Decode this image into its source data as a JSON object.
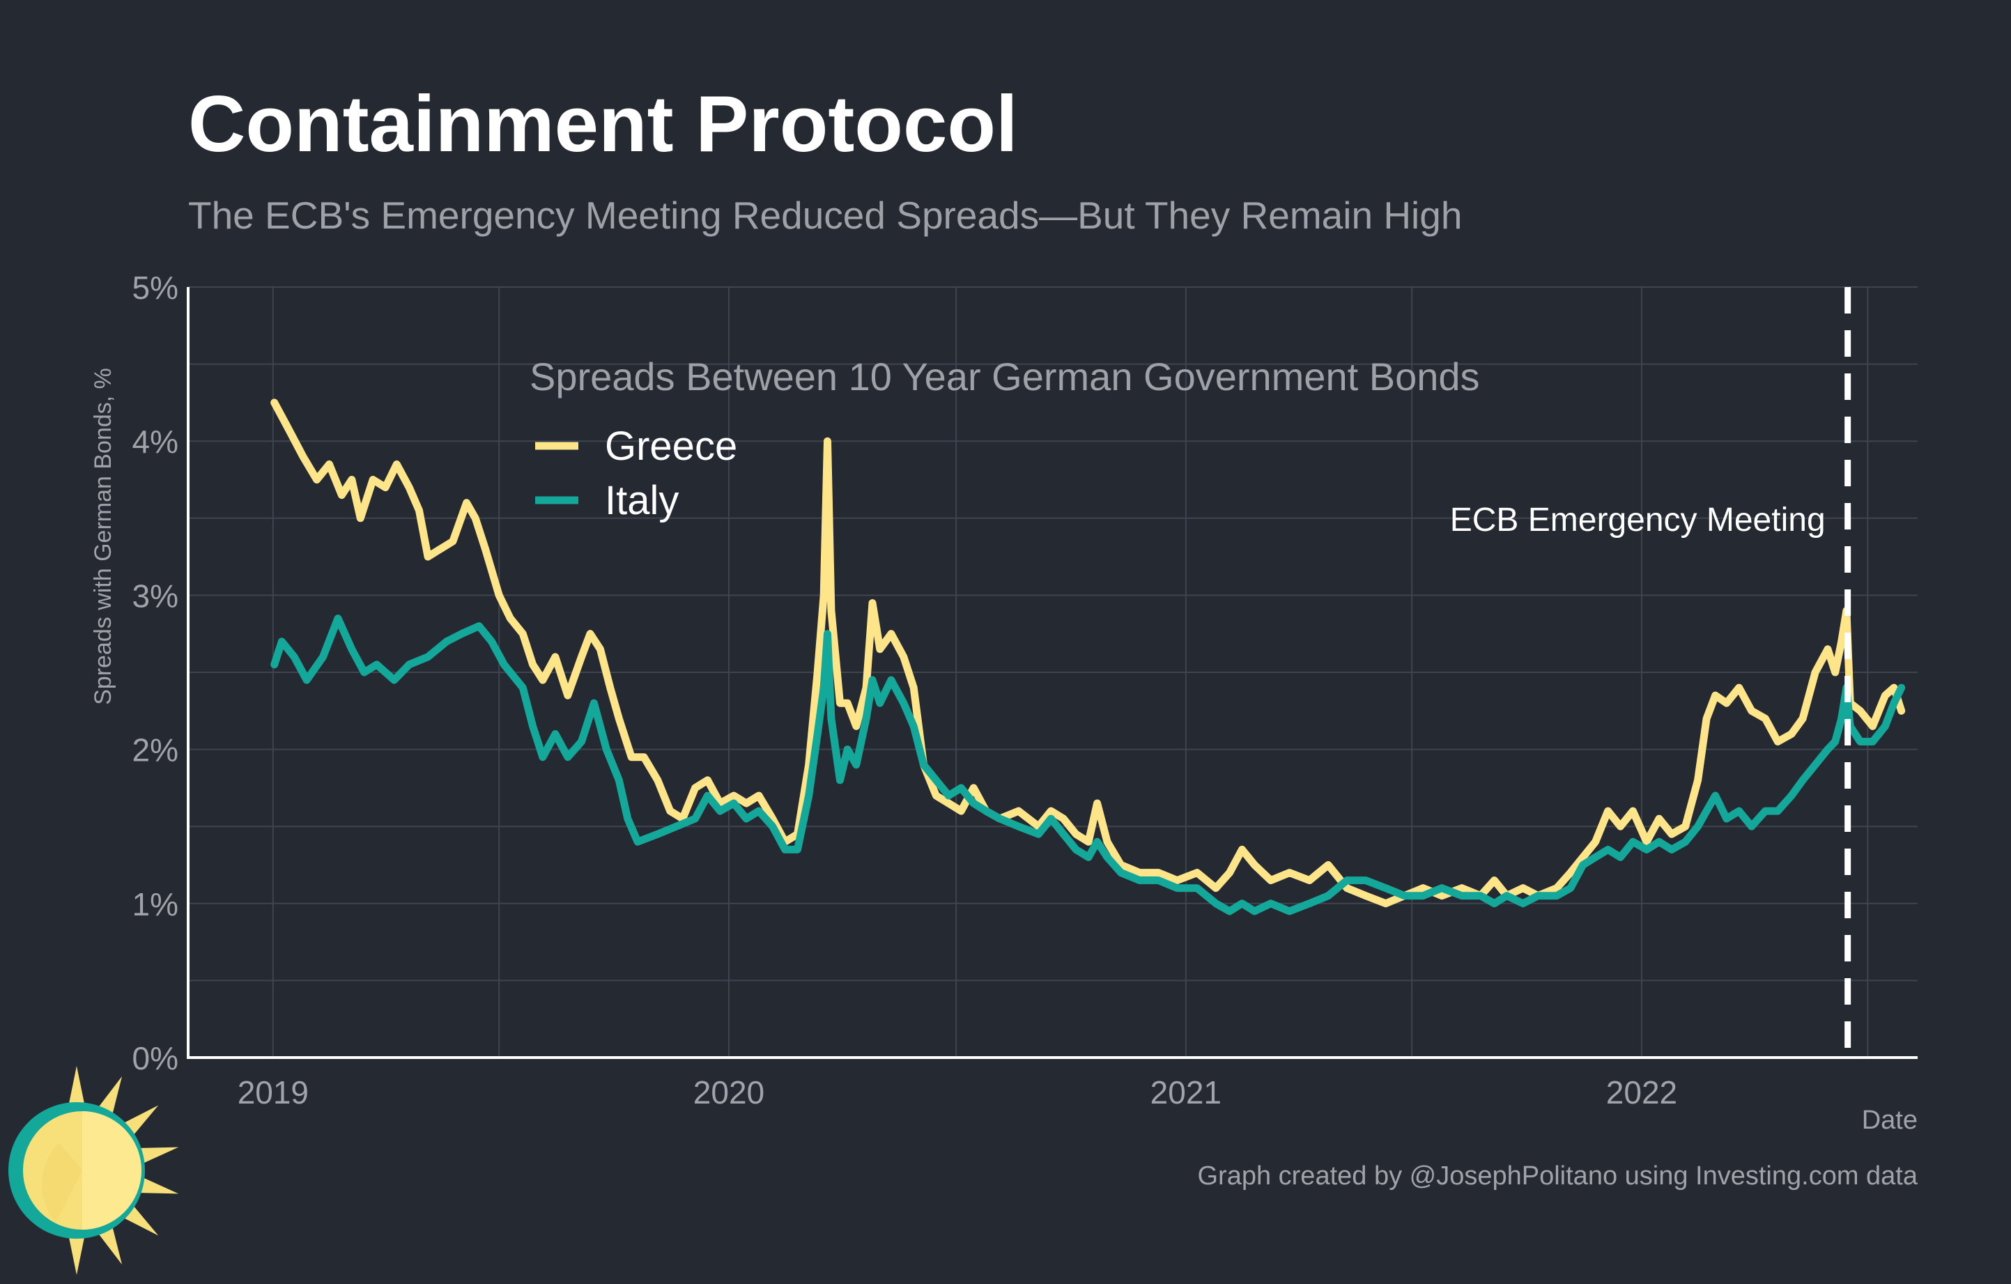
{
  "colors": {
    "background": "#252932",
    "grid": "#3f444e",
    "axis": "#ffffff",
    "greece": "#ffe58a",
    "italy": "#14a89a",
    "title": "#ffffff",
    "subtitle": "#9ea1a8",
    "tick_label": "#a0a3aa",
    "annotation": "#ffffff",
    "logo_sun": "#f7e07a",
    "logo_ring": "#14a89a"
  },
  "chart_data": {
    "type": "line",
    "title": "Containment Protocol",
    "subtitle": "The ECB's Emergency Meeting Reduced Spreads—But They Remain High",
    "ylabel": "Spreads with German Bonds, %",
    "xlabel": "Date",
    "ylim": [
      0,
      5
    ],
    "xlim": [
      "2018-10-25",
      "2022-08-10"
    ],
    "y_ticks": [
      0,
      1,
      2,
      3,
      4,
      5
    ],
    "y_tick_labels": [
      "0%",
      "1%",
      "2%",
      "3%",
      "4%",
      "5%"
    ],
    "x_ticks": [
      "2019-01-01",
      "2020-01-01",
      "2021-01-01",
      "2022-01-01"
    ],
    "x_tick_labels": [
      "2019",
      "2020",
      "2021",
      "2022"
    ],
    "grid": true,
    "legend": {
      "title": "Spreads Between 10 Year German Government Bonds",
      "placement": "top-left-inside",
      "entries": [
        "Greece",
        "Italy"
      ]
    },
    "annotations": [
      {
        "type": "vline",
        "x": "2022-06-15",
        "label": "ECB Emergency Meeting",
        "style": "dashed"
      }
    ],
    "series": [
      {
        "name": "Greece",
        "points": [
          [
            "2019-01-02",
            4.25
          ],
          [
            "2019-01-12",
            4.1
          ],
          [
            "2019-01-25",
            3.9
          ],
          [
            "2019-02-05",
            3.75
          ],
          [
            "2019-02-15",
            3.85
          ],
          [
            "2019-02-25",
            3.65
          ],
          [
            "2019-03-05",
            3.75
          ],
          [
            "2019-03-12",
            3.5
          ],
          [
            "2019-03-22",
            3.75
          ],
          [
            "2019-04-01",
            3.7
          ],
          [
            "2019-04-10",
            3.85
          ],
          [
            "2019-04-20",
            3.7
          ],
          [
            "2019-04-28",
            3.55
          ],
          [
            "2019-05-05",
            3.25
          ],
          [
            "2019-05-15",
            3.3
          ],
          [
            "2019-05-25",
            3.35
          ],
          [
            "2019-06-05",
            3.6
          ],
          [
            "2019-06-12",
            3.5
          ],
          [
            "2019-06-20",
            3.3
          ],
          [
            "2019-07-01",
            3.0
          ],
          [
            "2019-07-10",
            2.85
          ],
          [
            "2019-07-20",
            2.75
          ],
          [
            "2019-07-28",
            2.55
          ],
          [
            "2019-08-05",
            2.45
          ],
          [
            "2019-08-15",
            2.6
          ],
          [
            "2019-08-25",
            2.35
          ],
          [
            "2019-09-05",
            2.6
          ],
          [
            "2019-09-12",
            2.75
          ],
          [
            "2019-09-20",
            2.65
          ],
          [
            "2019-09-28",
            2.4
          ],
          [
            "2019-10-05",
            2.2
          ],
          [
            "2019-10-15",
            1.95
          ],
          [
            "2019-10-25",
            1.95
          ],
          [
            "2019-11-05",
            1.8
          ],
          [
            "2019-11-15",
            1.6
          ],
          [
            "2019-11-25",
            1.55
          ],
          [
            "2019-12-05",
            1.75
          ],
          [
            "2019-12-15",
            1.8
          ],
          [
            "2019-12-25",
            1.65
          ],
          [
            "2020-01-05",
            1.7
          ],
          [
            "2020-01-15",
            1.65
          ],
          [
            "2020-01-25",
            1.7
          ],
          [
            "2020-02-05",
            1.55
          ],
          [
            "2020-02-15",
            1.4
          ],
          [
            "2020-02-25",
            1.45
          ],
          [
            "2020-03-05",
            1.9
          ],
          [
            "2020-03-12",
            2.5
          ],
          [
            "2020-03-17",
            3.0
          ],
          [
            "2020-03-20",
            4.0
          ],
          [
            "2020-03-23",
            2.9
          ],
          [
            "2020-03-30",
            2.3
          ],
          [
            "2020-04-05",
            2.3
          ],
          [
            "2020-04-12",
            2.15
          ],
          [
            "2020-04-20",
            2.4
          ],
          [
            "2020-04-25",
            2.95
          ],
          [
            "2020-05-01",
            2.65
          ],
          [
            "2020-05-10",
            2.75
          ],
          [
            "2020-05-20",
            2.6
          ],
          [
            "2020-05-28",
            2.4
          ],
          [
            "2020-06-05",
            1.9
          ],
          [
            "2020-06-15",
            1.7
          ],
          [
            "2020-06-25",
            1.65
          ],
          [
            "2020-07-05",
            1.6
          ],
          [
            "2020-07-15",
            1.75
          ],
          [
            "2020-07-25",
            1.6
          ],
          [
            "2020-08-05",
            1.55
          ],
          [
            "2020-08-20",
            1.6
          ],
          [
            "2020-09-05",
            1.5
          ],
          [
            "2020-09-15",
            1.6
          ],
          [
            "2020-09-25",
            1.55
          ],
          [
            "2020-10-05",
            1.45
          ],
          [
            "2020-10-15",
            1.4
          ],
          [
            "2020-10-22",
            1.65
          ],
          [
            "2020-10-30",
            1.4
          ],
          [
            "2020-11-10",
            1.25
          ],
          [
            "2020-11-25",
            1.2
          ],
          [
            "2020-12-10",
            1.2
          ],
          [
            "2020-12-25",
            1.15
          ],
          [
            "2021-01-10",
            1.2
          ],
          [
            "2021-01-25",
            1.1
          ],
          [
            "2021-02-05",
            1.2
          ],
          [
            "2021-02-15",
            1.35
          ],
          [
            "2021-02-25",
            1.25
          ],
          [
            "2021-03-10",
            1.15
          ],
          [
            "2021-03-25",
            1.2
          ],
          [
            "2021-04-10",
            1.15
          ],
          [
            "2021-04-25",
            1.25
          ],
          [
            "2021-05-10",
            1.1
          ],
          [
            "2021-05-25",
            1.05
          ],
          [
            "2021-06-10",
            1.0
          ],
          [
            "2021-06-25",
            1.05
          ],
          [
            "2021-07-10",
            1.1
          ],
          [
            "2021-07-25",
            1.05
          ],
          [
            "2021-08-10",
            1.1
          ],
          [
            "2021-08-25",
            1.05
          ],
          [
            "2021-09-05",
            1.15
          ],
          [
            "2021-09-15",
            1.05
          ],
          [
            "2021-09-28",
            1.1
          ],
          [
            "2021-10-10",
            1.05
          ],
          [
            "2021-10-25",
            1.1
          ],
          [
            "2021-11-05",
            1.2
          ],
          [
            "2021-11-15",
            1.3
          ],
          [
            "2021-11-25",
            1.4
          ],
          [
            "2021-12-05",
            1.6
          ],
          [
            "2021-12-15",
            1.5
          ],
          [
            "2021-12-25",
            1.6
          ],
          [
            "2022-01-05",
            1.4
          ],
          [
            "2022-01-15",
            1.55
          ],
          [
            "2022-01-25",
            1.45
          ],
          [
            "2022-02-05",
            1.5
          ],
          [
            "2022-02-15",
            1.8
          ],
          [
            "2022-02-22",
            2.2
          ],
          [
            "2022-03-01",
            2.35
          ],
          [
            "2022-03-10",
            2.3
          ],
          [
            "2022-03-20",
            2.4
          ],
          [
            "2022-03-30",
            2.25
          ],
          [
            "2022-04-10",
            2.2
          ],
          [
            "2022-04-20",
            2.05
          ],
          [
            "2022-05-01",
            2.1
          ],
          [
            "2022-05-10",
            2.2
          ],
          [
            "2022-05-20",
            2.5
          ],
          [
            "2022-05-30",
            2.65
          ],
          [
            "2022-06-05",
            2.5
          ],
          [
            "2022-06-10",
            2.7
          ],
          [
            "2022-06-14",
            2.9
          ],
          [
            "2022-06-17",
            2.3
          ],
          [
            "2022-06-25",
            2.25
          ],
          [
            "2022-07-05",
            2.15
          ],
          [
            "2022-07-15",
            2.35
          ],
          [
            "2022-07-22",
            2.4
          ],
          [
            "2022-07-28",
            2.25
          ]
        ]
      },
      {
        "name": "Italy",
        "points": [
          [
            "2019-01-02",
            2.55
          ],
          [
            "2019-01-08",
            2.7
          ],
          [
            "2019-01-18",
            2.6
          ],
          [
            "2019-01-28",
            2.45
          ],
          [
            "2019-02-10",
            2.6
          ],
          [
            "2019-02-22",
            2.85
          ],
          [
            "2019-03-05",
            2.65
          ],
          [
            "2019-03-15",
            2.5
          ],
          [
            "2019-03-25",
            2.55
          ],
          [
            "2019-04-08",
            2.45
          ],
          [
            "2019-04-20",
            2.55
          ],
          [
            "2019-05-05",
            2.6
          ],
          [
            "2019-05-20",
            2.7
          ],
          [
            "2019-06-01",
            2.75
          ],
          [
            "2019-06-15",
            2.8
          ],
          [
            "2019-06-25",
            2.7
          ],
          [
            "2019-07-05",
            2.55
          ],
          [
            "2019-07-20",
            2.4
          ],
          [
            "2019-07-28",
            2.15
          ],
          [
            "2019-08-05",
            1.95
          ],
          [
            "2019-08-15",
            2.1
          ],
          [
            "2019-08-25",
            1.95
          ],
          [
            "2019-09-05",
            2.05
          ],
          [
            "2019-09-15",
            2.3
          ],
          [
            "2019-09-25",
            2.0
          ],
          [
            "2019-10-05",
            1.8
          ],
          [
            "2019-10-12",
            1.55
          ],
          [
            "2019-10-20",
            1.4
          ],
          [
            "2019-11-05",
            1.45
          ],
          [
            "2019-11-20",
            1.5
          ],
          [
            "2019-12-05",
            1.55
          ],
          [
            "2019-12-15",
            1.7
          ],
          [
            "2019-12-25",
            1.6
          ],
          [
            "2020-01-05",
            1.65
          ],
          [
            "2020-01-15",
            1.55
          ],
          [
            "2020-01-25",
            1.6
          ],
          [
            "2020-02-05",
            1.5
          ],
          [
            "2020-02-15",
            1.35
          ],
          [
            "2020-02-25",
            1.35
          ],
          [
            "2020-03-05",
            1.7
          ],
          [
            "2020-03-12",
            2.1
          ],
          [
            "2020-03-17",
            2.4
          ],
          [
            "2020-03-20",
            2.75
          ],
          [
            "2020-03-23",
            2.2
          ],
          [
            "2020-03-30",
            1.8
          ],
          [
            "2020-04-05",
            2.0
          ],
          [
            "2020-04-12",
            1.9
          ],
          [
            "2020-04-20",
            2.2
          ],
          [
            "2020-04-25",
            2.45
          ],
          [
            "2020-05-01",
            2.3
          ],
          [
            "2020-05-10",
            2.45
          ],
          [
            "2020-05-20",
            2.3
          ],
          [
            "2020-05-28",
            2.15
          ],
          [
            "2020-06-05",
            1.9
          ],
          [
            "2020-06-15",
            1.8
          ],
          [
            "2020-06-25",
            1.7
          ],
          [
            "2020-07-05",
            1.75
          ],
          [
            "2020-07-15",
            1.65
          ],
          [
            "2020-07-25",
            1.6
          ],
          [
            "2020-08-05",
            1.55
          ],
          [
            "2020-08-20",
            1.5
          ],
          [
            "2020-09-05",
            1.45
          ],
          [
            "2020-09-15",
            1.55
          ],
          [
            "2020-09-25",
            1.45
          ],
          [
            "2020-10-05",
            1.35
          ],
          [
            "2020-10-15",
            1.3
          ],
          [
            "2020-10-22",
            1.4
          ],
          [
            "2020-10-30",
            1.3
          ],
          [
            "2020-11-10",
            1.2
          ],
          [
            "2020-11-25",
            1.15
          ],
          [
            "2020-12-10",
            1.15
          ],
          [
            "2020-12-25",
            1.1
          ],
          [
            "2021-01-10",
            1.1
          ],
          [
            "2021-01-25",
            1.0
          ],
          [
            "2021-02-05",
            0.95
          ],
          [
            "2021-02-15",
            1.0
          ],
          [
            "2021-02-25",
            0.95
          ],
          [
            "2021-03-10",
            1.0
          ],
          [
            "2021-03-25",
            0.95
          ],
          [
            "2021-04-10",
            1.0
          ],
          [
            "2021-04-25",
            1.05
          ],
          [
            "2021-05-10",
            1.15
          ],
          [
            "2021-05-25",
            1.15
          ],
          [
            "2021-06-10",
            1.1
          ],
          [
            "2021-06-25",
            1.05
          ],
          [
            "2021-07-10",
            1.05
          ],
          [
            "2021-07-25",
            1.1
          ],
          [
            "2021-08-10",
            1.05
          ],
          [
            "2021-08-25",
            1.05
          ],
          [
            "2021-09-05",
            1.0
          ],
          [
            "2021-09-15",
            1.05
          ],
          [
            "2021-09-28",
            1.0
          ],
          [
            "2021-10-10",
            1.05
          ],
          [
            "2021-10-25",
            1.05
          ],
          [
            "2021-11-05",
            1.1
          ],
          [
            "2021-11-15",
            1.25
          ],
          [
            "2021-11-25",
            1.3
          ],
          [
            "2021-12-05",
            1.35
          ],
          [
            "2021-12-15",
            1.3
          ],
          [
            "2021-12-25",
            1.4
          ],
          [
            "2022-01-05",
            1.35
          ],
          [
            "2022-01-15",
            1.4
          ],
          [
            "2022-01-25",
            1.35
          ],
          [
            "2022-02-05",
            1.4
          ],
          [
            "2022-02-15",
            1.5
          ],
          [
            "2022-02-22",
            1.6
          ],
          [
            "2022-03-01",
            1.7
          ],
          [
            "2022-03-10",
            1.55
          ],
          [
            "2022-03-20",
            1.6
          ],
          [
            "2022-03-30",
            1.5
          ],
          [
            "2022-04-10",
            1.6
          ],
          [
            "2022-04-20",
            1.6
          ],
          [
            "2022-05-01",
            1.7
          ],
          [
            "2022-05-10",
            1.8
          ],
          [
            "2022-05-20",
            1.9
          ],
          [
            "2022-05-30",
            2.0
          ],
          [
            "2022-06-05",
            2.05
          ],
          [
            "2022-06-10",
            2.2
          ],
          [
            "2022-06-14",
            2.4
          ],
          [
            "2022-06-17",
            2.15
          ],
          [
            "2022-06-25",
            2.05
          ],
          [
            "2022-07-05",
            2.05
          ],
          [
            "2022-07-15",
            2.15
          ],
          [
            "2022-07-22",
            2.3
          ],
          [
            "2022-07-28",
            2.4
          ]
        ]
      }
    ]
  },
  "footer": {
    "credit": "Graph created by @JosephPolitano using Investing.com data"
  },
  "logo": {
    "icon": "sun-logo-icon"
  }
}
